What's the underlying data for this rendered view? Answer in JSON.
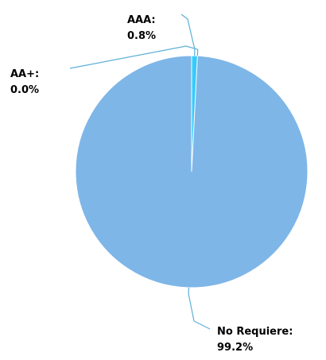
{
  "chart_data": {
    "type": "pie",
    "title": "",
    "slices": [
      {
        "label": "AAA:",
        "value_text": "0.8%",
        "value": 0.8,
        "color": "#33CCFF"
      },
      {
        "label": "AA+:",
        "value_text": "0.0%",
        "value": 0.0,
        "color": "#2299DD"
      },
      {
        "label": "No Requiere:",
        "value_text": "99.2%",
        "value": 99.2,
        "color": "#7EB6E8"
      }
    ],
    "leader_line_color": "#5BB0D8",
    "legend": "none"
  }
}
